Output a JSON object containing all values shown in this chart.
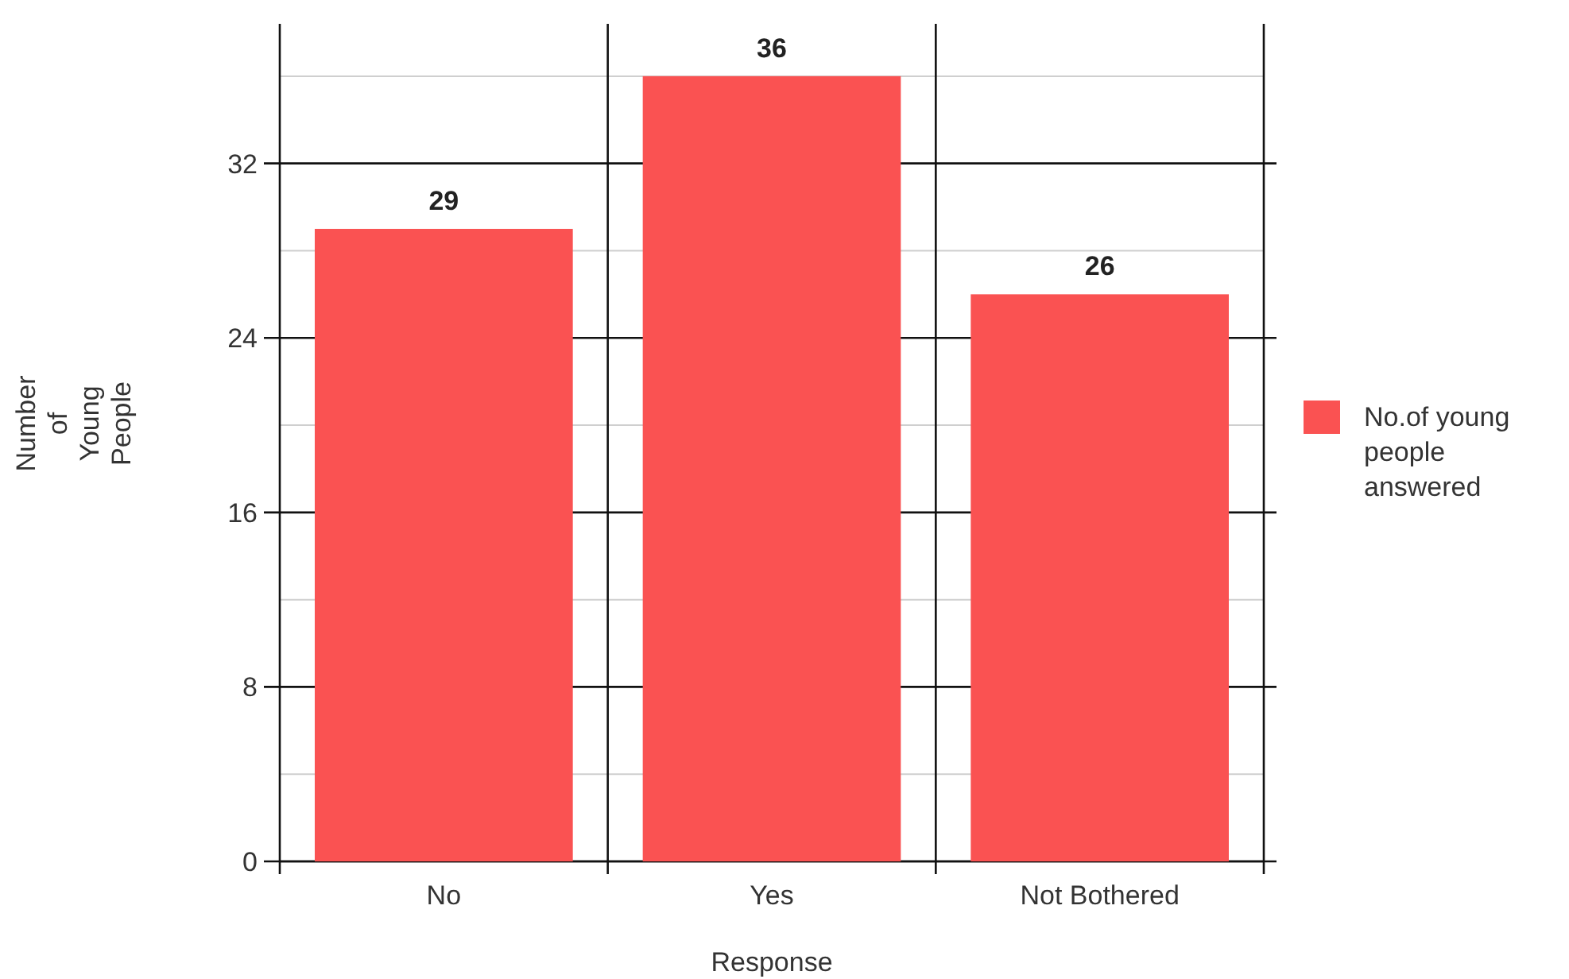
{
  "chart_data": {
    "type": "bar",
    "xlabel": "Response",
    "ylabel": "Number of Young People",
    "categories": [
      "No",
      "Yes",
      "Not Bothered"
    ],
    "series": [
      {
        "name": "No.of young people answered",
        "color": "#fa5252",
        "values": [
          29,
          36,
          26
        ]
      }
    ],
    "ylim": [
      0,
      38.4
    ],
    "yticks": [
      0,
      {
        "value": 4,
        "label": null
      },
      8,
      {
        "value": 12,
        "label": null
      },
      16,
      {
        "value": 20,
        "label": null
      },
      24,
      {
        "value": 28,
        "label": null
      },
      32,
      {
        "value": 36,
        "label": null
      }
    ],
    "grid": true,
    "legend": "right",
    "data_labels": true
  }
}
